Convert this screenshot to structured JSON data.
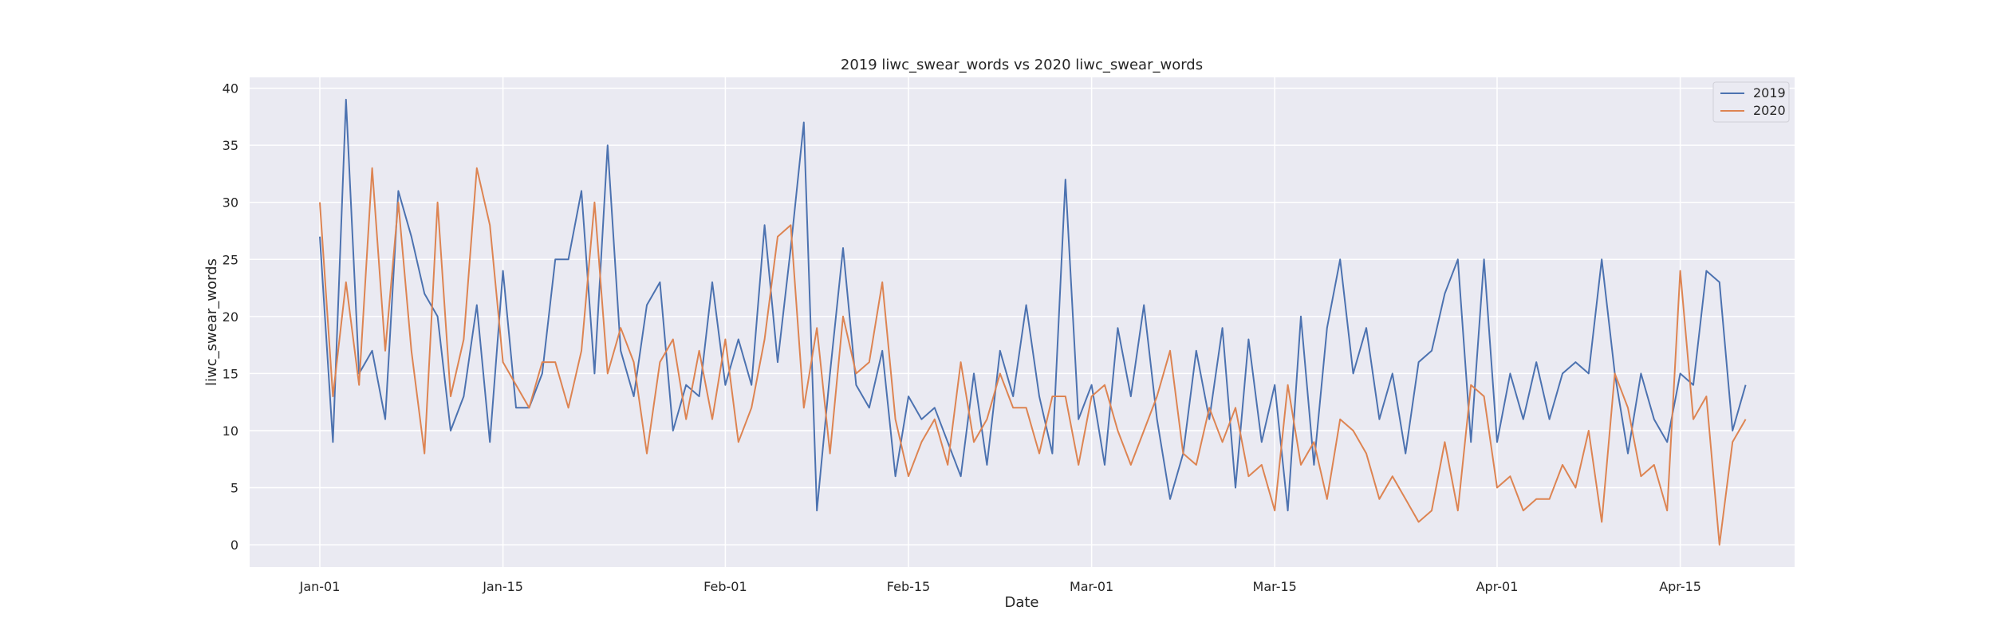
{
  "chart_data": {
    "type": "line",
    "title": "2019 liwc_swear_words vs 2020 liwc_swear_words",
    "xlabel": "Date",
    "ylabel": "liwc_swear_words",
    "x_start": "Jan-01",
    "xticks": [
      "Jan-01",
      "Jan-15",
      "Feb-01",
      "Feb-15",
      "Mar-01",
      "Mar-15",
      "Apr-01",
      "Apr-15"
    ],
    "yticks": [
      0,
      5,
      10,
      15,
      20,
      25,
      30,
      35,
      40
    ],
    "ylim": [
      -1.95,
      40.95
    ],
    "grid": true,
    "legend_position": "top-right",
    "series": [
      {
        "name": "2019",
        "color": "#4c72b0",
        "values": [
          27,
          9,
          39,
          15,
          17,
          11,
          31,
          27,
          22,
          20,
          10,
          13,
          21,
          9,
          24,
          12,
          12,
          15,
          25,
          25,
          31,
          15,
          35,
          17,
          13,
          21,
          23,
          10,
          14,
          13,
          23,
          14,
          18,
          14,
          28,
          16,
          26,
          37,
          3,
          15,
          26,
          14,
          12,
          17,
          6,
          13,
          11,
          12,
          9,
          6,
          15,
          7,
          17,
          13,
          21,
          13,
          8,
          32,
          11,
          14,
          7,
          19,
          13,
          21,
          11,
          4,
          8,
          17,
          11,
          19,
          5,
          18,
          9,
          14,
          3,
          20,
          7,
          19,
          25,
          15,
          19,
          11,
          15,
          8,
          16,
          17,
          22,
          25,
          9,
          25,
          9,
          15,
          11,
          16,
          11,
          15,
          16,
          15,
          25,
          15,
          8,
          15,
          11,
          9,
          15,
          14,
          24,
          23,
          10,
          14
        ]
      },
      {
        "name": "2020",
        "color": "#dd8452",
        "values": [
          30,
          13,
          23,
          14,
          33,
          17,
          30,
          17,
          8,
          30,
          13,
          18,
          33,
          28,
          16,
          14,
          12,
          16,
          16,
          12,
          17,
          30,
          15,
          19,
          16,
          8,
          16,
          18,
          11,
          17,
          11,
          18,
          9,
          12,
          18,
          27,
          28,
          12,
          19,
          8,
          20,
          15,
          16,
          23,
          11,
          6,
          9,
          11,
          7,
          16,
          9,
          11,
          15,
          12,
          12,
          8,
          13,
          13,
          7,
          13,
          14,
          10,
          7,
          10,
          13,
          17,
          8,
          7,
          12,
          9,
          12,
          6,
          7,
          3,
          14,
          7,
          9,
          4,
          11,
          10,
          8,
          4,
          6,
          4,
          2,
          3,
          9,
          3,
          14,
          13,
          5,
          6,
          3,
          4,
          4,
          7,
          5,
          10,
          2,
          15,
          12,
          6,
          7,
          3,
          24,
          11,
          13,
          0,
          9,
          11
        ]
      }
    ]
  }
}
